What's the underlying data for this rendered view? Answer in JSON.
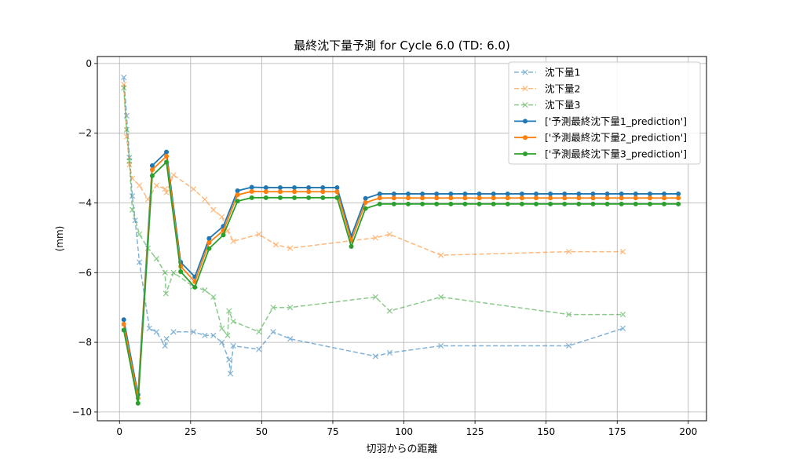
{
  "chart_data": {
    "type": "line",
    "title": "最終沈下量予測 for Cycle 6.0 (TD: 6.0)",
    "xlabel": "切羽からの距離",
    "ylabel": "(mm)",
    "xlim": [
      -7.8,
      206.4
    ],
    "ylim": [
      -10.25,
      0.2
    ],
    "x_ticks": [
      0,
      25,
      50,
      75,
      100,
      125,
      150,
      175,
      200
    ],
    "y_ticks": [
      0,
      -2,
      -4,
      -6,
      -8,
      -10
    ],
    "grid": true,
    "legend_position": "top-right",
    "series": [
      {
        "name": "沈下量1",
        "style": "dashed-x",
        "color": "#1f77b4",
        "x": [
          1.5,
          2.5,
          3.5,
          4.5,
          5.5,
          7,
          10.5,
          13,
          16,
          16.5,
          19,
          26,
          30,
          33,
          36,
          38.5,
          39,
          40,
          49,
          54,
          60,
          90,
          95,
          113,
          158,
          177
        ],
        "y": [
          -0.4,
          -1.5,
          -2.7,
          -3.8,
          -4.5,
          -5.7,
          -7.6,
          -7.7,
          -8.1,
          -7.9,
          -7.7,
          -7.7,
          -7.8,
          -7.8,
          -8.0,
          -8.5,
          -8.9,
          -8.1,
          -8.2,
          -7.7,
          -7.9,
          -8.4,
          -8.3,
          -8.1,
          -8.1,
          -7.6
        ]
      },
      {
        "name": "沈下量2",
        "style": "dashed-x",
        "color": "#ff7f0e",
        "x": [
          1.5,
          2.5,
          3.5,
          4.5,
          7,
          10,
          13,
          16,
          16.5,
          19,
          26,
          30,
          33,
          36,
          38,
          40,
          49,
          55,
          60,
          90,
          95,
          113,
          158,
          177
        ],
        "y": [
          -0.6,
          -2.1,
          -2.9,
          -3.3,
          -3.5,
          -3.9,
          -3.5,
          -3.6,
          -3.7,
          -3.2,
          -3.6,
          -3.9,
          -4.2,
          -4.4,
          -4.8,
          -5.1,
          -4.9,
          -5.2,
          -5.3,
          -5.0,
          -4.9,
          -5.5,
          -5.4,
          -5.4
        ]
      },
      {
        "name": "沈下量3",
        "style": "dashed-x",
        "color": "#2ca02c",
        "x": [
          1.5,
          2.5,
          3.5,
          4.5,
          7,
          10,
          13,
          16,
          16.3,
          19,
          26,
          30,
          33,
          36,
          38,
          38.5,
          40,
          49,
          54,
          60,
          90,
          95,
          113,
          158,
          177
        ],
        "y": [
          -0.7,
          -1.9,
          -2.8,
          -4.2,
          -4.9,
          -5.3,
          -5.6,
          -6.0,
          -6.6,
          -6.0,
          -6.4,
          -6.5,
          -6.7,
          -7.6,
          -7.8,
          -7.1,
          -7.4,
          -7.7,
          -7.0,
          -7.0,
          -6.7,
          -7.1,
          -6.7,
          -7.2,
          -7.2
        ]
      },
      {
        "name": "['予測最終沈下量1_prediction']",
        "style": "solid-dot",
        "color": "#1f77b4",
        "x": [
          1.5,
          6.5,
          11.5,
          16.5,
          21.5,
          26.5,
          31.5,
          36.5,
          41.5,
          46.5,
          51.5,
          56.5,
          61.5,
          66.5,
          71.5,
          76.5,
          81.5,
          86.5,
          91.5,
          96.5,
          101.5,
          106.5,
          111.5,
          116.5,
          121.5,
          126.5,
          131.5,
          136.5,
          141.5,
          146.5,
          151.5,
          156.5,
          161.5,
          166.5,
          171.5,
          176.5,
          181.5,
          186.5,
          191.5,
          196.5
        ],
        "y": [
          -7.35,
          -9.5,
          -2.93,
          -2.54,
          -5.7,
          -6.12,
          -5.02,
          -4.67,
          -3.65,
          -3.55,
          -3.56,
          -3.56,
          -3.56,
          -3.56,
          -3.56,
          -3.56,
          -4.95,
          -3.87,
          -3.74,
          -3.74,
          -3.74,
          -3.74,
          -3.74,
          -3.74,
          -3.74,
          -3.74,
          -3.74,
          -3.74,
          -3.74,
          -3.74,
          -3.74,
          -3.74,
          -3.74,
          -3.74,
          -3.74,
          -3.74,
          -3.74,
          -3.74,
          -3.74,
          -3.74
        ]
      },
      {
        "name": "['予測最終沈下量2_prediction']",
        "style": "solid-dot",
        "color": "#ff7f0e",
        "x": [
          1.5,
          6.5,
          11.5,
          16.5,
          21.5,
          26.5,
          31.5,
          36.5,
          41.5,
          46.5,
          51.5,
          56.5,
          61.5,
          66.5,
          71.5,
          76.5,
          81.5,
          86.5,
          91.5,
          96.5,
          101.5,
          106.5,
          111.5,
          116.5,
          121.5,
          126.5,
          131.5,
          136.5,
          141.5,
          146.5,
          151.5,
          156.5,
          161.5,
          166.5,
          171.5,
          176.5,
          181.5,
          186.5,
          191.5,
          196.5
        ],
        "y": [
          -7.48,
          -9.6,
          -3.05,
          -2.66,
          -5.82,
          -6.26,
          -5.14,
          -4.79,
          -3.77,
          -3.67,
          -3.68,
          -3.68,
          -3.68,
          -3.68,
          -3.68,
          -3.68,
          -5.08,
          -3.99,
          -3.86,
          -3.86,
          -3.86,
          -3.86,
          -3.86,
          -3.86,
          -3.86,
          -3.86,
          -3.86,
          -3.86,
          -3.86,
          -3.86,
          -3.86,
          -3.86,
          -3.86,
          -3.86,
          -3.86,
          -3.86,
          -3.86,
          -3.86,
          -3.86,
          -3.86
        ]
      },
      {
        "name": "['予測最終沈下量3_prediction']",
        "style": "solid-dot",
        "color": "#2ca02c",
        "x": [
          1.5,
          6.5,
          11.5,
          16.5,
          21.5,
          26.5,
          31.5,
          36.5,
          41.5,
          46.5,
          51.5,
          56.5,
          61.5,
          66.5,
          71.5,
          76.5,
          81.5,
          86.5,
          91.5,
          96.5,
          101.5,
          106.5,
          111.5,
          116.5,
          121.5,
          126.5,
          131.5,
          136.5,
          141.5,
          146.5,
          151.5,
          156.5,
          161.5,
          166.5,
          171.5,
          176.5,
          181.5,
          186.5,
          191.5,
          196.5
        ],
        "y": [
          -7.65,
          -9.75,
          -3.22,
          -2.83,
          -5.97,
          -6.42,
          -5.31,
          -4.92,
          -3.95,
          -3.85,
          -3.85,
          -3.85,
          -3.85,
          -3.85,
          -3.85,
          -3.85,
          -5.25,
          -4.16,
          -4.03,
          -4.03,
          -4.03,
          -4.03,
          -4.03,
          -4.03,
          -4.03,
          -4.03,
          -4.03,
          -4.03,
          -4.03,
          -4.03,
          -4.03,
          -4.03,
          -4.03,
          -4.03,
          -4.03,
          -4.03,
          -4.03,
          -4.03,
          -4.03,
          -4.03
        ]
      }
    ]
  }
}
